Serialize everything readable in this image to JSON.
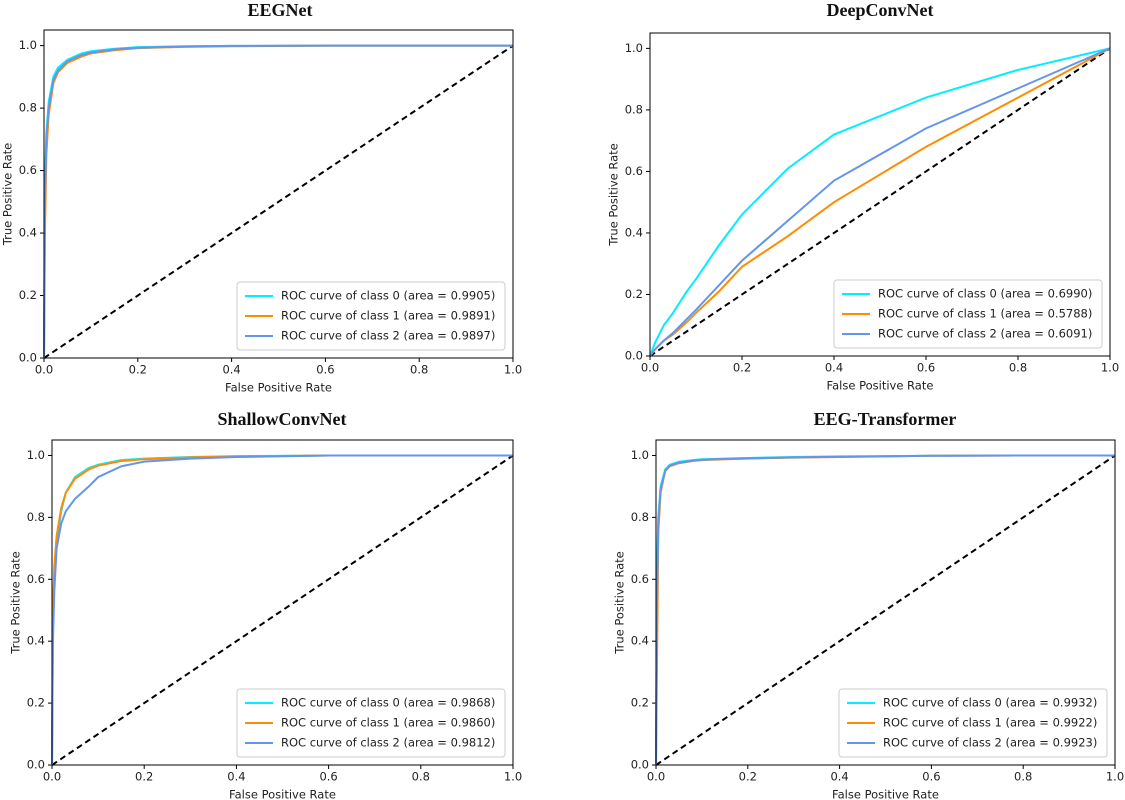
{
  "chart_data": [
    {
      "type": "line",
      "title": "EEGNet",
      "xlabel": "False Positive Rate",
      "ylabel": "True Positive Rate",
      "xlim": [
        0,
        1
      ],
      "ylim": [
        0,
        1.05
      ],
      "xticks": [
        {
          "value": 0,
          "label": "0.0"
        },
        0.2,
        0.4,
        0.6,
        0.8,
        {
          "value": 1,
          "label": "1.0"
        }
      ],
      "yticks": [
        {
          "value": 0,
          "label": "0.0"
        },
        0.2,
        0.4,
        0.6,
        0.8,
        {
          "value": 1,
          "label": "1.0"
        }
      ],
      "legend": "lower right",
      "x": [
        0,
        0.002,
        0.005,
        0.01,
        0.02,
        0.03,
        0.05,
        0.08,
        0.1,
        0.15,
        0.2,
        0.3,
        0.4,
        0.6,
        0.8,
        1
      ],
      "series": [
        {
          "name": "ROC curve of class 0 (area = 0.9905)",
          "color": "#00eeff",
          "values": [
            0,
            0.55,
            0.72,
            0.82,
            0.9,
            0.93,
            0.955,
            0.975,
            0.982,
            0.99,
            0.995,
            0.998,
            0.999,
            1,
            1,
            1
          ]
        },
        {
          "name": "ROC curve of class 1 (area = 0.9891)",
          "color": "#ff8c00",
          "values": [
            0,
            0.4,
            0.65,
            0.78,
            0.88,
            0.915,
            0.945,
            0.965,
            0.975,
            0.985,
            0.992,
            0.996,
            0.998,
            1,
            1,
            1
          ]
        },
        {
          "name": "ROC curve of class 2 (area = 0.9897)",
          "color": "#6495ed",
          "values": [
            0,
            0.5,
            0.7,
            0.8,
            0.89,
            0.92,
            0.95,
            0.97,
            0.978,
            0.988,
            0.993,
            0.997,
            0.999,
            1,
            1,
            1
          ]
        }
      ],
      "reference_line": {
        "x": [
          0,
          1
        ],
        "values": [
          0,
          1
        ],
        "color": "#000000",
        "style": "dashed"
      }
    },
    {
      "type": "line",
      "title": "DeepConvNet",
      "xlabel": "False Positive Rate",
      "ylabel": "True Positive Rate",
      "xlim": [
        0,
        1
      ],
      "ylim": [
        0,
        1.05
      ],
      "xticks": [
        {
          "value": 0,
          "label": "0.0"
        },
        0.2,
        0.4,
        0.6,
        0.8,
        {
          "value": 1,
          "label": "1.0"
        }
      ],
      "yticks": [
        {
          "value": 0,
          "label": "0.0"
        },
        0.2,
        0.4,
        0.6,
        0.8,
        {
          "value": 1,
          "label": "1.0"
        }
      ],
      "legend": "lower right",
      "x": [
        0,
        0.002,
        0.005,
        0.01,
        0.02,
        0.03,
        0.05,
        0.08,
        0.1,
        0.15,
        0.2,
        0.3,
        0.4,
        0.6,
        0.8,
        1
      ],
      "series": [
        {
          "name": "ROC curve of class 0 (area = 0.6990)",
          "color": "#00eeff",
          "values": [
            0,
            0.01,
            0.02,
            0.04,
            0.07,
            0.1,
            0.14,
            0.21,
            0.25,
            0.36,
            0.46,
            0.61,
            0.72,
            0.84,
            0.93,
            1
          ]
        },
        {
          "name": "ROC curve of class 1 (area = 0.5788)",
          "color": "#ff8c00",
          "values": [
            0,
            0.004,
            0.01,
            0.02,
            0.035,
            0.05,
            0.07,
            0.11,
            0.14,
            0.21,
            0.29,
            0.39,
            0.5,
            0.68,
            0.84,
            1
          ]
        },
        {
          "name": "ROC curve of class 2 (area = 0.6091)",
          "color": "#6495ed",
          "values": [
            0,
            0.004,
            0.01,
            0.02,
            0.035,
            0.05,
            0.075,
            0.12,
            0.15,
            0.23,
            0.31,
            0.44,
            0.57,
            0.74,
            0.87,
            1
          ]
        }
      ],
      "reference_line": {
        "x": [
          0,
          1
        ],
        "values": [
          0,
          1
        ],
        "color": "#000000",
        "style": "dashed"
      }
    },
    {
      "type": "line",
      "title": "ShallowConvNet",
      "xlabel": "False Positive Rate",
      "ylabel": "True Positive Rate",
      "xlim": [
        0,
        1
      ],
      "ylim": [
        0,
        1.05
      ],
      "xticks": [
        {
          "value": 0,
          "label": "0.0"
        },
        0.2,
        0.4,
        0.6,
        0.8,
        {
          "value": 1,
          "label": "1.0"
        }
      ],
      "yticks": [
        {
          "value": 0,
          "label": "0.0"
        },
        0.2,
        0.4,
        0.6,
        0.8,
        {
          "value": 1,
          "label": "1.0"
        }
      ],
      "legend": "lower right",
      "x": [
        0,
        0.002,
        0.005,
        0.01,
        0.02,
        0.03,
        0.05,
        0.08,
        0.1,
        0.15,
        0.2,
        0.3,
        0.4,
        0.6,
        0.8,
        1
      ],
      "series": [
        {
          "name": "ROC curve of class 0 (area = 0.9868)",
          "color": "#00eeff",
          "values": [
            0,
            0.45,
            0.6,
            0.72,
            0.82,
            0.88,
            0.93,
            0.96,
            0.97,
            0.985,
            0.99,
            0.995,
            0.998,
            1,
            1,
            1
          ]
        },
        {
          "name": "ROC curve of class 1 (area = 0.9860)",
          "color": "#ff8c00",
          "values": [
            0,
            0.5,
            0.64,
            0.74,
            0.83,
            0.88,
            0.925,
            0.955,
            0.967,
            0.982,
            0.988,
            0.994,
            0.997,
            1,
            1,
            1
          ]
        },
        {
          "name": "ROC curve of class 2 (area = 0.9812)",
          "color": "#6495ed",
          "values": [
            0,
            0.4,
            0.56,
            0.7,
            0.78,
            0.82,
            0.86,
            0.9,
            0.93,
            0.965,
            0.98,
            0.99,
            0.995,
            1,
            1,
            1
          ]
        }
      ],
      "reference_line": {
        "x": [
          0,
          1
        ],
        "values": [
          0,
          1
        ],
        "color": "#000000",
        "style": "dashed"
      }
    },
    {
      "type": "line",
      "title": "EEG-Transformer",
      "xlabel": "False Positive Rate",
      "ylabel": "True Positive Rate",
      "xlim": [
        0,
        1
      ],
      "ylim": [
        0,
        1.05
      ],
      "xticks": [
        {
          "value": 0,
          "label": "0.0"
        },
        0.2,
        0.4,
        0.6,
        0.8,
        {
          "value": 1,
          "label": "1.0"
        }
      ],
      "yticks": [
        {
          "value": 0,
          "label": "0.0"
        },
        0.2,
        0.4,
        0.6,
        0.8,
        {
          "value": 1,
          "label": "1.0"
        }
      ],
      "legend": "lower right",
      "x": [
        0,
        0.002,
        0.005,
        0.01,
        0.02,
        0.03,
        0.05,
        0.08,
        0.1,
        0.15,
        0.2,
        0.3,
        0.4,
        0.6,
        0.8,
        1
      ],
      "series": [
        {
          "name": "ROC curve of class 0 (area = 0.9932)",
          "color": "#00eeff",
          "values": [
            0,
            0.6,
            0.8,
            0.9,
            0.955,
            0.97,
            0.98,
            0.985,
            0.988,
            0.99,
            0.992,
            0.995,
            0.997,
            0.999,
            1,
            1
          ]
        },
        {
          "name": "ROC curve of class 1 (area = 0.9922)",
          "color": "#ff8c00",
          "values": [
            0,
            0.3,
            0.75,
            0.88,
            0.95,
            0.965,
            0.975,
            0.982,
            0.985,
            0.988,
            0.99,
            0.993,
            0.995,
            0.999,
            1,
            1
          ]
        },
        {
          "name": "ROC curve of class 2 (area = 0.9923)",
          "color": "#6495ed",
          "values": [
            0,
            0.5,
            0.78,
            0.89,
            0.95,
            0.967,
            0.977,
            0.983,
            0.986,
            0.989,
            0.991,
            0.994,
            0.996,
            0.999,
            1,
            1
          ]
        }
      ],
      "reference_line": {
        "x": [
          0,
          1
        ],
        "values": [
          0,
          1
        ],
        "color": "#000000",
        "style": "dashed"
      }
    }
  ]
}
